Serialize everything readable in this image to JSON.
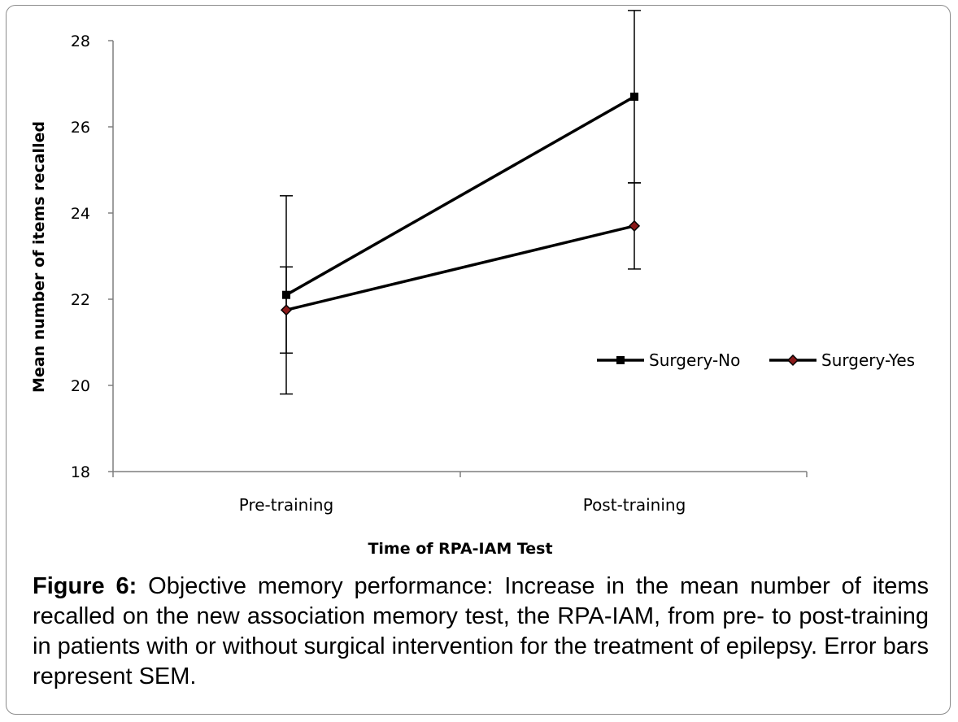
{
  "chart_data": {
    "type": "line",
    "categories": [
      "Pre-training",
      "Post-training"
    ],
    "xlabel": "Time of RPA-IAM Test",
    "ylabel": "Mean number of items recalled",
    "ylim": [
      18,
      28
    ],
    "yticks": [
      18,
      20,
      22,
      24,
      26,
      28
    ],
    "grid": false,
    "legend_position": "right",
    "series": [
      {
        "name": "Surgery-No",
        "values": [
          22.1,
          26.7
        ],
        "error": [
          2.3,
          2.0
        ],
        "marker": "square",
        "color": "#000000"
      },
      {
        "name": "Surgery-Yes",
        "values": [
          21.75,
          23.7
        ],
        "error": [
          1.0,
          1.0
        ],
        "marker": "diamond",
        "color": "#000000",
        "marker_fill": "#8b1a1a"
      }
    ]
  },
  "caption": {
    "label": "Figure 6:",
    "text": " Objective memory performance: Increase in the mean number of items recalled on the new association memory test, the RPA-IAM, from pre- to post-training in patients with or without surgical intervention for the treatment of epilepsy. Error bars represent SEM."
  }
}
